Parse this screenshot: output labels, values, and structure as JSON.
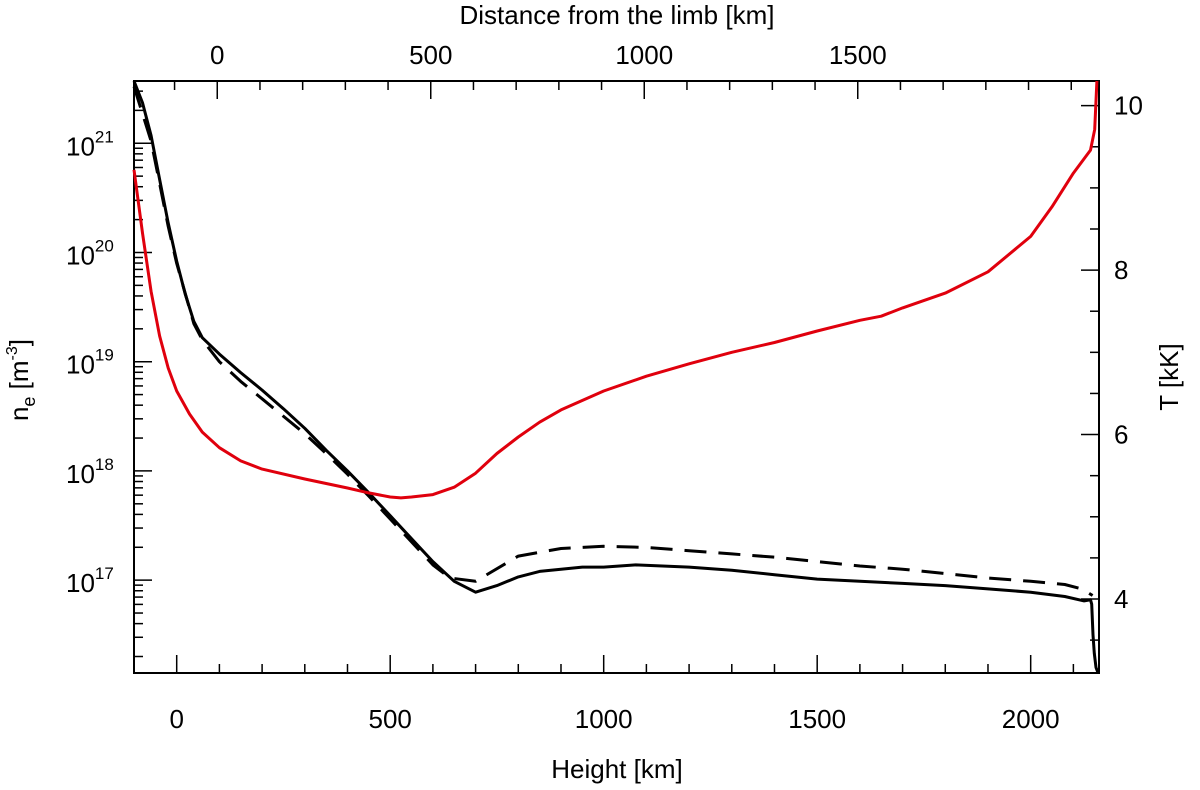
{
  "chart_data": {
    "type": "line",
    "title": "",
    "xlabel": "Height [km]",
    "xlabel_top": "Distance from the limb [km]",
    "ylabel_left": {
      "base": "n",
      "sub": "e",
      "rest": " [m",
      "sup": "-3",
      "close": "]"
    },
    "ylabel_right": "T [kK]",
    "xlim": [
      -100,
      2160
    ],
    "xticks": [
      0,
      500,
      1000,
      1500,
      2000
    ],
    "xtick_labels": [
      "0",
      "500",
      "1000",
      "1500",
      "2000"
    ],
    "top_offset": 95,
    "top_xticks": [
      0,
      500,
      1000,
      1500
    ],
    "top_xtick_labels": [
      "0",
      "500",
      "1000",
      "1500"
    ],
    "ylim_log10": [
      16.15,
      21.57
    ],
    "left_yticks": [
      {
        "exp": "17",
        "label_base": "10",
        "label_exp": "17"
      },
      {
        "exp": "18",
        "label_base": "10",
        "label_exp": "18"
      },
      {
        "exp": "19",
        "label_base": "10",
        "label_exp": "19"
      },
      {
        "exp": "20",
        "label_base": "10",
        "label_exp": "20"
      },
      {
        "exp": "21",
        "label_base": "10",
        "label_exp": "21"
      }
    ],
    "ylim_right": [
      3.1,
      10.3
    ],
    "right_yticks": [
      4,
      6,
      8,
      10
    ],
    "right_ytick_labels": [
      "4",
      "6",
      "8",
      "10"
    ],
    "series": [
      {
        "name": "n_e (solid)",
        "axis": "left",
        "color": "#000000",
        "dash": "",
        "points": [
          [
            -100,
            21.57
          ],
          [
            -80,
            21.37
          ],
          [
            -60,
            21.07
          ],
          [
            -40,
            20.67
          ],
          [
            -20,
            20.27
          ],
          [
            0,
            19.92
          ],
          [
            20,
            19.62
          ],
          [
            40,
            19.37
          ],
          [
            60,
            19.22
          ],
          [
            100,
            19.07
          ],
          [
            150,
            18.9
          ],
          [
            200,
            18.74
          ],
          [
            250,
            18.57
          ],
          [
            300,
            18.39
          ],
          [
            350,
            18.19
          ],
          [
            400,
            18.0
          ],
          [
            450,
            17.8
          ],
          [
            500,
            17.59
          ],
          [
            550,
            17.38
          ],
          [
            600,
            17.17
          ],
          [
            650,
            16.99
          ],
          [
            700,
            16.89
          ],
          [
            750,
            16.95
          ],
          [
            800,
            17.03
          ],
          [
            850,
            17.08
          ],
          [
            900,
            17.1
          ],
          [
            950,
            17.12
          ],
          [
            1000,
            17.12
          ],
          [
            1075,
            17.14
          ],
          [
            1200,
            17.12
          ],
          [
            1300,
            17.09
          ],
          [
            1400,
            17.05
          ],
          [
            1500,
            17.01
          ],
          [
            1600,
            16.99
          ],
          [
            1700,
            16.97
          ],
          [
            1800,
            16.95
          ],
          [
            1900,
            16.92
          ],
          [
            2000,
            16.89
          ],
          [
            2080,
            16.85
          ],
          [
            2125,
            16.81
          ],
          [
            2140,
            16.82
          ],
          [
            2143,
            16.78
          ],
          [
            2146,
            16.5
          ],
          [
            2149,
            16.33
          ],
          [
            2153,
            16.2
          ],
          [
            2158,
            16.15
          ]
        ]
      },
      {
        "name": "n_e (dashed)",
        "axis": "left",
        "color": "#000000",
        "dash": "22,12",
        "points": [
          [
            -100,
            21.52
          ],
          [
            -60,
            21.02
          ],
          [
            -20,
            20.24
          ],
          [
            0,
            19.9
          ],
          [
            40,
            19.35
          ],
          [
            60,
            19.2
          ],
          [
            100,
            19.0
          ],
          [
            150,
            18.82
          ],
          [
            200,
            18.66
          ],
          [
            300,
            18.34
          ],
          [
            350,
            18.16
          ],
          [
            400,
            17.97
          ],
          [
            450,
            17.77
          ],
          [
            500,
            17.56
          ],
          [
            550,
            17.35
          ],
          [
            600,
            17.14
          ],
          [
            640,
            17.02
          ],
          [
            700,
            16.99
          ],
          [
            800,
            17.22
          ],
          [
            900,
            17.29
          ],
          [
            1000,
            17.31
          ],
          [
            1100,
            17.3
          ],
          [
            1200,
            17.27
          ],
          [
            1300,
            17.24
          ],
          [
            1400,
            17.21
          ],
          [
            1500,
            17.17
          ],
          [
            1600,
            17.13
          ],
          [
            1700,
            17.1
          ],
          [
            1800,
            17.06
          ],
          [
            1900,
            17.02
          ],
          [
            2000,
            16.99
          ],
          [
            2080,
            16.96
          ],
          [
            2120,
            16.92
          ],
          [
            2145,
            16.86
          ]
        ]
      },
      {
        "name": "T",
        "axis": "right",
        "color": "#e0000d",
        "dash": "",
        "points": [
          [
            -100,
            9.22
          ],
          [
            -80,
            8.45
          ],
          [
            -60,
            7.74
          ],
          [
            -40,
            7.2
          ],
          [
            -20,
            6.81
          ],
          [
            0,
            6.53
          ],
          [
            30,
            6.25
          ],
          [
            60,
            6.03
          ],
          [
            100,
            5.84
          ],
          [
            150,
            5.68
          ],
          [
            200,
            5.58
          ],
          [
            300,
            5.46
          ],
          [
            400,
            5.35
          ],
          [
            450,
            5.29
          ],
          [
            500,
            5.24
          ],
          [
            525,
            5.23
          ],
          [
            550,
            5.24
          ],
          [
            600,
            5.27
          ],
          [
            650,
            5.36
          ],
          [
            700,
            5.53
          ],
          [
            750,
            5.77
          ],
          [
            800,
            5.97
          ],
          [
            850,
            6.15
          ],
          [
            900,
            6.3
          ],
          [
            1000,
            6.53
          ],
          [
            1100,
            6.71
          ],
          [
            1200,
            6.86
          ],
          [
            1300,
            7.0
          ],
          [
            1400,
            7.12
          ],
          [
            1500,
            7.26
          ],
          [
            1600,
            7.39
          ],
          [
            1650,
            7.44
          ],
          [
            1700,
            7.54
          ],
          [
            1800,
            7.72
          ],
          [
            1900,
            7.98
          ],
          [
            2000,
            8.41
          ],
          [
            2050,
            8.77
          ],
          [
            2100,
            9.18
          ],
          [
            2140,
            9.46
          ],
          [
            2150,
            9.71
          ],
          [
            2155,
            10.3
          ]
        ]
      }
    ]
  }
}
